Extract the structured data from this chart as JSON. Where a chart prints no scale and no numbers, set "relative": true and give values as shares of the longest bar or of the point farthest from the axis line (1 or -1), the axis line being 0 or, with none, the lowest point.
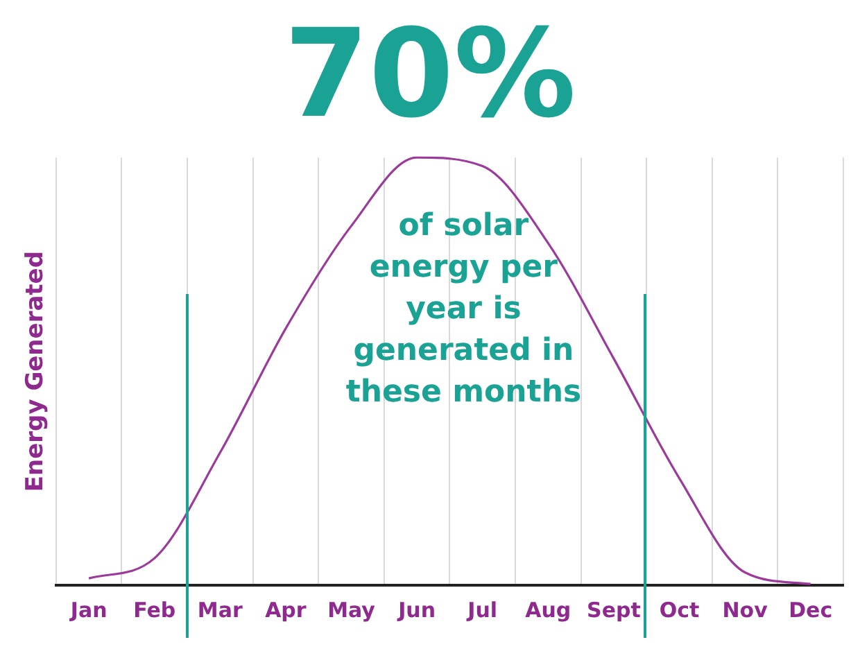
{
  "chart_data": {
    "type": "line",
    "title": "70%",
    "ylabel": "Energy Generated",
    "relative": true,
    "categories": [
      "Jan",
      "Feb",
      "Mar",
      "Apr",
      "May",
      "Jun",
      "Jul",
      "Aug",
      "Sept",
      "Oct",
      "Nov",
      "Dec"
    ],
    "series": [
      {
        "color": "#9b3a9b",
        "values": [
          0.016,
          0.063,
          0.31,
          0.6,
          0.84,
          1.0,
          0.98,
          0.8,
          0.53,
          0.25,
          0.03,
          0.003
        ]
      }
    ],
    "annotations": [
      "of solar energy per year is generated in these months"
    ],
    "grid": "x",
    "legend": false,
    "marker": "none",
    "line_style": "solid"
  }
}
